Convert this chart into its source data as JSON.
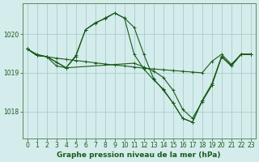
{
  "xlabel": "Graphe pression niveau de la mer (hPa)",
  "background_color": "#d4ecec",
  "grid_color": "#aacccc",
  "line_color": "#1a5c1a",
  "ylim": [
    1017.3,
    1020.8
  ],
  "yticks": [
    1018,
    1019,
    1020
  ],
  "xlim": [
    -0.5,
    23.5
  ],
  "xticks": [
    0,
    1,
    2,
    3,
    4,
    5,
    6,
    7,
    8,
    9,
    10,
    11,
    12,
    13,
    14,
    15,
    16,
    17,
    18,
    19,
    20,
    21,
    22,
    23
  ],
  "lines": [
    {
      "x": [
        0,
        1,
        2,
        3,
        4,
        5,
        6,
        7,
        8,
        9,
        10,
        11,
        12,
        13,
        14,
        15,
        16,
        17,
        18,
        19,
        20,
        21,
        22,
        23
      ],
      "y": [
        1019.62,
        1019.48,
        1019.42,
        1019.38,
        1019.35,
        1019.32,
        1019.29,
        1019.26,
        1019.23,
        1019.2,
        1019.18,
        1019.15,
        1019.12,
        1019.1,
        1019.08,
        1019.06,
        1019.04,
        1019.02,
        1019.0,
        1019.3,
        1019.48,
        1019.22,
        1019.48,
        1019.48
      ]
    },
    {
      "x": [
        0,
        1,
        2,
        3,
        4,
        5,
        6,
        7,
        8,
        9,
        10,
        11,
        12,
        13,
        14,
        15,
        16,
        17,
        18,
        19,
        20,
        21,
        22,
        23
      ],
      "y": [
        1019.62,
        1019.45,
        1019.42,
        1019.18,
        1019.13,
        1019.42,
        1020.12,
        1020.28,
        1020.42,
        1020.55,
        1020.42,
        1020.18,
        1019.48,
        1018.85,
        1018.55,
        1018.22,
        1017.82,
        1017.72,
        1018.28,
        1018.72,
        1019.42,
        1019.18,
        1019.48,
        1019.48
      ]
    },
    {
      "x": [
        0,
        1,
        2,
        3,
        4,
        5,
        6,
        7,
        8,
        9,
        10,
        11,
        12,
        13,
        14,
        15,
        16,
        17,
        18,
        19,
        20,
        21,
        22,
        23
      ],
      "y": [
        1019.62,
        1019.45,
        1019.42,
        1019.28,
        1019.13,
        1019.45,
        1020.12,
        1020.3,
        1020.4,
        1020.55,
        1020.42,
        1019.48,
        1019.1,
        1018.82,
        1018.58,
        1018.22,
        1017.82,
        1017.72,
        1018.28,
        1018.68,
        1019.42,
        1019.18,
        1019.48,
        1019.48
      ]
    },
    {
      "x": [
        0,
        1,
        2,
        3,
        4,
        11,
        12,
        13,
        14,
        15,
        16,
        17,
        18,
        19,
        20,
        21,
        22,
        23
      ],
      "y": [
        1019.62,
        1019.45,
        1019.42,
        1019.28,
        1019.13,
        1019.25,
        1019.15,
        1019.05,
        1018.88,
        1018.55,
        1018.05,
        1017.82,
        1018.25,
        1018.68,
        1019.42,
        1019.18,
        1019.48,
        1019.48
      ]
    }
  ],
  "tick_fontsize": 5.5,
  "label_fontsize": 6.5
}
